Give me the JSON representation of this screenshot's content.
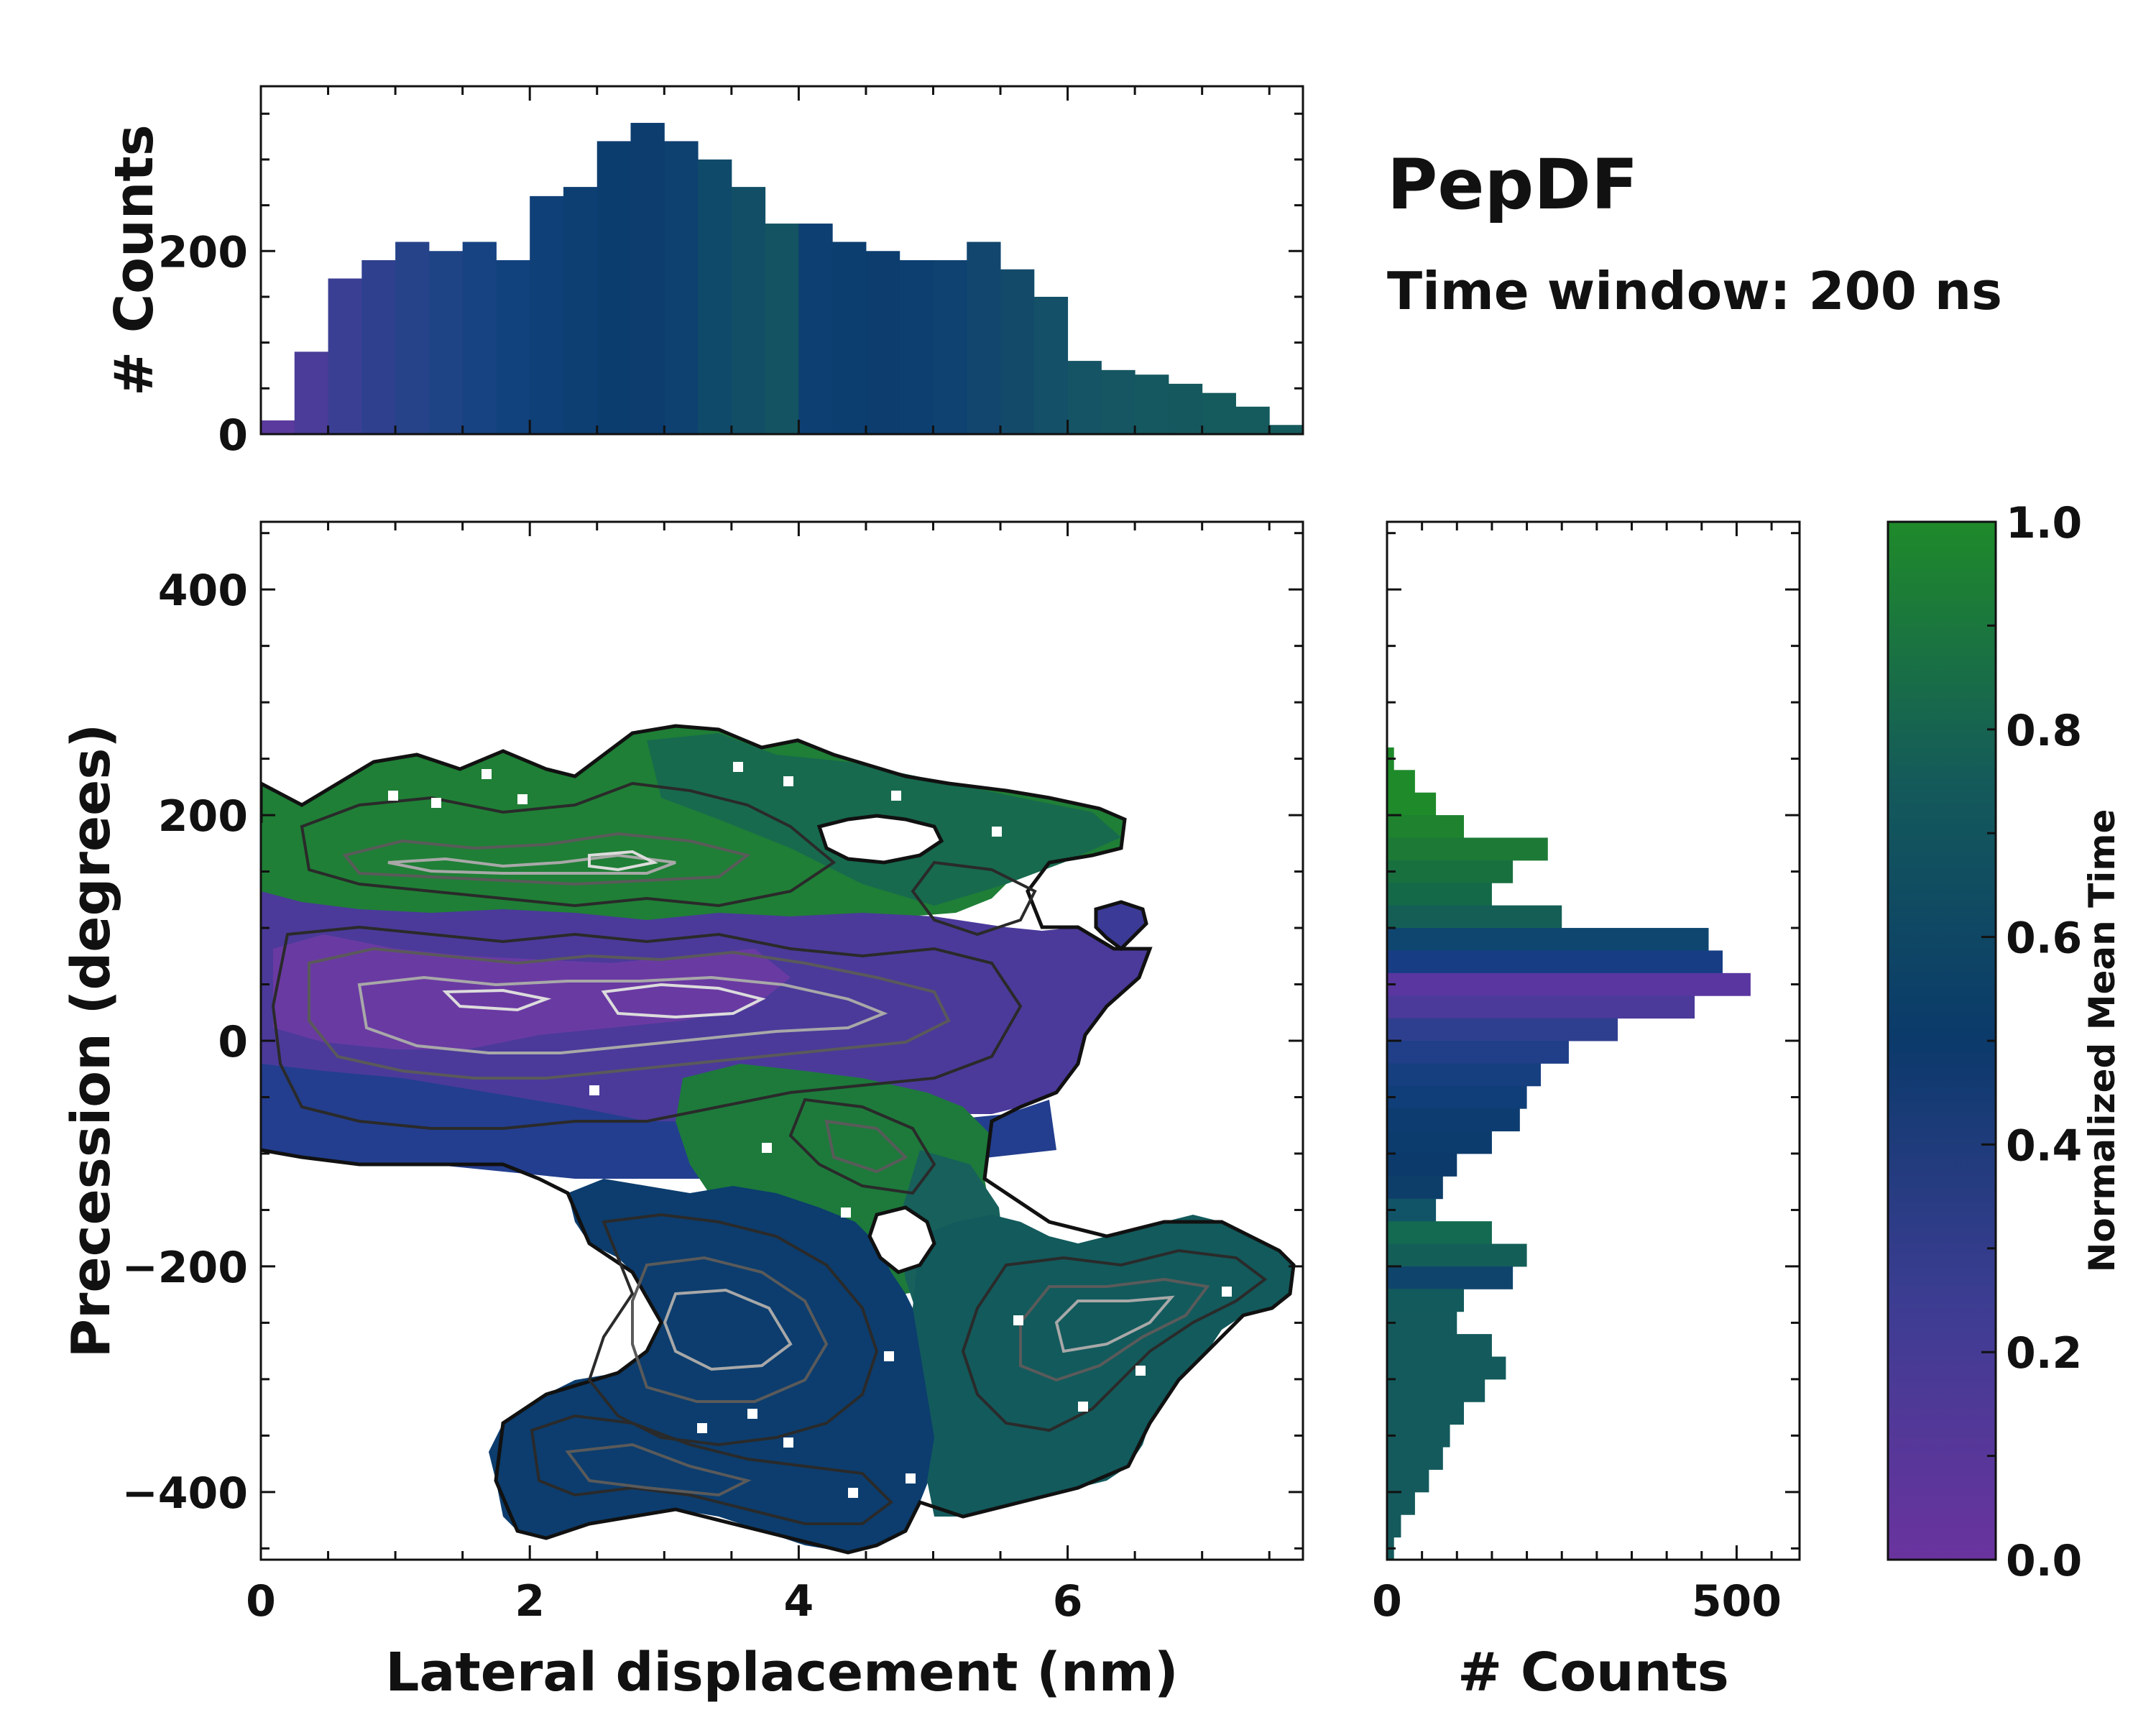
{
  "title": "PepDF",
  "subtitle": "Time window: 200 ns",
  "colors": {
    "purple": "#6a339e",
    "indigo": "#2f3f8f",
    "navy": "#0b3a6b",
    "teal": "#145a5a",
    "green": "#1f8a2a",
    "contour_dark": "#111111",
    "contour_light": "#bbbbbb"
  },
  "chart_data": [
    {
      "id": "top_histogram",
      "type": "bar",
      "xlabel": "",
      "ylabel": "# Counts",
      "xlim": [
        0,
        7.75
      ],
      "ylim": [
        0,
        380
      ],
      "yticks": [
        0,
        200
      ],
      "ytick_labels": [
        "0",
        "200"
      ],
      "bins_x": [
        0,
        0.25,
        0.5,
        0.75,
        1.0,
        1.25,
        1.5,
        1.75,
        2.0,
        2.25,
        2.5,
        2.75,
        3.0,
        3.25,
        3.5,
        3.75,
        4.0,
        4.25,
        4.5,
        4.75,
        5.0,
        5.25,
        5.5,
        5.75,
        6.0,
        6.25,
        6.5,
        6.75,
        7.0,
        7.25,
        7.5
      ],
      "values": [
        15,
        90,
        170,
        190,
        210,
        200,
        210,
        190,
        260,
        270,
        320,
        340,
        320,
        300,
        270,
        230,
        230,
        210,
        200,
        190,
        190,
        210,
        180,
        150,
        80,
        70,
        65,
        55,
        45,
        30,
        10
      ]
    },
    {
      "id": "main_density",
      "type": "heatmap",
      "xlabel": "Lateral displacement (nm)",
      "ylabel": "Precession (degrees)",
      "xlim": [
        0,
        7.75
      ],
      "ylim": [
        -460,
        460
      ],
      "xticks": [
        0,
        2,
        4,
        6
      ],
      "xtick_labels": [
        "0",
        "2",
        "4",
        "6"
      ],
      "yticks": [
        400,
        200,
        0,
        -200,
        -400
      ],
      "ytick_labels": [
        "400",
        "200",
        "0",
        "−200",
        "−400"
      ],
      "regions": [
        {
          "name": "upper-green",
          "x_range": [
            0,
            6.4
          ],
          "y_range": [
            100,
            260
          ],
          "mean_time": 0.95
        },
        {
          "name": "central-purple",
          "x_range": [
            0,
            6.6
          ],
          "y_range": [
            -100,
            100
          ],
          "mean_time": 0.2
        },
        {
          "name": "mid-green",
          "x_range": [
            3.0,
            5.5
          ],
          "y_range": [
            -150,
            20
          ],
          "mean_time": 0.8
        },
        {
          "name": "lower-navy",
          "x_range": [
            1.6,
            5.0
          ],
          "y_range": [
            -440,
            -120
          ],
          "mean_time": 0.5
        },
        {
          "name": "lower-teal",
          "x_range": [
            4.6,
            7.7
          ],
          "y_range": [
            -420,
            -130
          ],
          "mean_time": 0.65
        }
      ]
    },
    {
      "id": "right_histogram",
      "type": "bar",
      "orientation": "horizontal",
      "xlabel": "# Counts",
      "ylabel": "",
      "xlim": [
        0,
        590
      ],
      "ylim": [
        -460,
        460
      ],
      "xticks": [
        0,
        500
      ],
      "xtick_labels": [
        "0",
        "500"
      ],
      "bins_y": [
        260,
        240,
        220,
        200,
        180,
        160,
        140,
        120,
        100,
        80,
        60,
        40,
        20,
        0,
        -20,
        -40,
        -60,
        -80,
        -100,
        -120,
        -140,
        -160,
        -180,
        -200,
        -220,
        -240,
        -260,
        -280,
        -300,
        -320,
        -340,
        -360,
        -380,
        -400,
        -420,
        -440
      ],
      "values": [
        10,
        40,
        70,
        110,
        230,
        180,
        150,
        250,
        460,
        480,
        520,
        440,
        330,
        260,
        220,
        200,
        190,
        150,
        100,
        80,
        70,
        150,
        200,
        180,
        110,
        100,
        150,
        170,
        140,
        110,
        90,
        80,
        60,
        40,
        20,
        10
      ]
    },
    {
      "id": "colorbar",
      "type": "colorbar",
      "label": "Normalized Mean Time",
      "range": [
        0.0,
        1.0
      ],
      "ticks": [
        0.0,
        0.2,
        0.4,
        0.6,
        0.8,
        1.0
      ],
      "tick_labels": [
        "0.0",
        "0.2",
        "0.4",
        "0.6",
        "0.8",
        "1.0"
      ]
    }
  ]
}
